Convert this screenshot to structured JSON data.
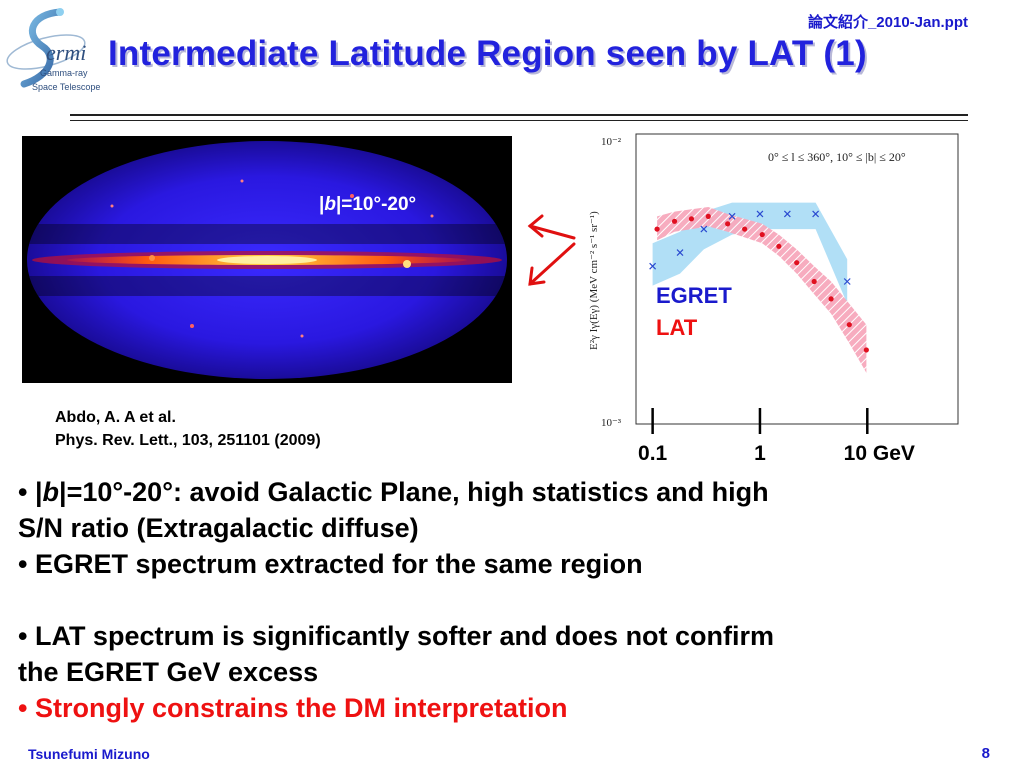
{
  "header": {
    "file_label": "論文紹介_2010-Jan.ppt",
    "title": "Intermediate Latitude Region seen by LAT (1)",
    "logo_text": [
      "ermi",
      "Gamma-ray",
      "Space Telescope"
    ]
  },
  "skymap": {
    "band_label_b": "b",
    "band_label_rest": "|=10°-20°",
    "band_label_pre": "|"
  },
  "citation": {
    "line1": "Abdo, A. A et al.",
    "line2": "Phys. Rev. Lett., 103, 251101 (2009)"
  },
  "bullets": {
    "b1_pre": "• |",
    "b1_italic": "b",
    "b1_post": "|=10°-20°: avoid Galactic Plane, high statistics and high",
    "b1_cont": "S/N ratio (Extragalactic diffuse)",
    "b2": "• EGRET spectrum extracted for the same region",
    "b3": "• LAT spectrum is significantly softer and does not confirm",
    "b3_cont": "the EGRET GeV excess",
    "b4": "• Strongly constrains the DM interpretation"
  },
  "footer": {
    "author": "Tsunefumi Mizuno",
    "page": "8"
  },
  "colors": {
    "title": "#2222dd",
    "egret": "#1a1acc",
    "lat": "#ee1111",
    "egret_band": "#a8dcf5",
    "lat_band": "#f7a8bc"
  },
  "chart_data": {
    "type": "scatter",
    "title": "0° ≤ l ≤ 360°, 10° ≤ |b| ≤ 20°",
    "ylabel": "E²γ Iγ(Eγ) (MeV cm⁻² s⁻¹ sr⁻¹)",
    "xlabel": "",
    "x_scale": "log",
    "y_scale": "log",
    "xlim": [
      0.07,
      70
    ],
    "ylim": [
      0.001,
      0.01
    ],
    "y_tick_labels": [
      "10⁻²",
      "10⁻³"
    ],
    "x_tick_labels": [
      {
        "value": 0.1,
        "label": "0.1"
      },
      {
        "value": 1,
        "label": "1"
      },
      {
        "value": 10,
        "label": "10 GeV"
      }
    ],
    "legend": [
      "EGRET",
      "LAT"
    ],
    "legend_placement": "left-middle",
    "series": [
      {
        "name": "EGRET",
        "marker": "x",
        "x": [
          0.1,
          0.18,
          0.3,
          0.55,
          1.0,
          1.8,
          3.3,
          6.5
        ],
        "y": [
          0.0035,
          0.0039,
          0.0047,
          0.0052,
          0.0053,
          0.0053,
          0.0053,
          0.0031
        ],
        "band_low": [
          0.003,
          0.0033,
          0.004,
          0.0045,
          0.0047,
          0.0047,
          0.0047,
          0.0026
        ],
        "band_high": [
          0.0042,
          0.0046,
          0.0054,
          0.0058,
          0.0058,
          0.0058,
          0.0058,
          0.0037
        ]
      },
      {
        "name": "LAT",
        "marker": "dot",
        "x": [
          0.11,
          0.16,
          0.23,
          0.33,
          0.5,
          0.72,
          1.05,
          1.5,
          2.2,
          3.2,
          4.6,
          6.8,
          9.8
        ],
        "y": [
          0.0047,
          0.005,
          0.0051,
          0.0052,
          0.0049,
          0.0047,
          0.0045,
          0.0041,
          0.0036,
          0.0031,
          0.0027,
          0.0022,
          0.0018
        ],
        "band_low": [
          0.0043,
          0.0046,
          0.0047,
          0.0048,
          0.0046,
          0.0044,
          0.0042,
          0.0038,
          0.0033,
          0.0028,
          0.0024,
          0.0019,
          0.0015
        ],
        "band_high": [
          0.0052,
          0.0054,
          0.0055,
          0.0056,
          0.0053,
          0.0051,
          0.0049,
          0.0045,
          0.004,
          0.0035,
          0.0031,
          0.0026,
          0.0022
        ]
      }
    ]
  }
}
